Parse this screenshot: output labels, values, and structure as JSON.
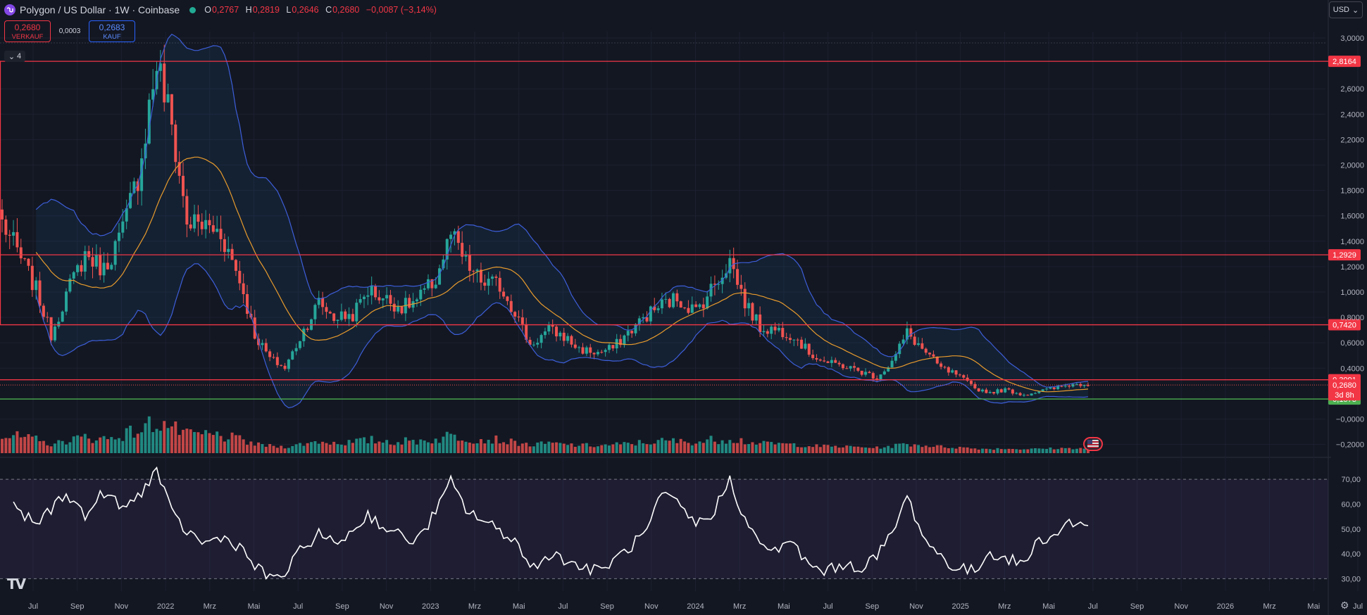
{
  "header": {
    "symbol": "Polygon / US Dollar · 1W · Coinbase",
    "open_label": "O",
    "open": "0,2767",
    "high_label": "H",
    "high": "0,2819",
    "low_label": "L",
    "low": "0,2646",
    "close_label": "C",
    "close": "0,2680",
    "change": "−0,0087 (−3,14%)"
  },
  "trade": {
    "sell_price": "0,2680",
    "sell_label": "VERKAUF",
    "spread": "0,0003",
    "buy_price": "0,2683",
    "buy_label": "KAUF"
  },
  "collapse_count": "4",
  "currency": "USD",
  "colors": {
    "background": "#131722",
    "up": "#26a69a",
    "down": "#ef5350",
    "bands": "#3d5ed9",
    "basis": "#e89b2d",
    "hline": "#f23645",
    "support": "#4caf50",
    "rsi": "#ffffff"
  },
  "chart_data": [
    {
      "type": "candlestick",
      "title": "Polygon / US Dollar · 1W · Coinbase",
      "timeframe": "1W",
      "ylim": [
        -0.28,
        3.05
      ],
      "y_ticks": [
        "3,0000",
        "2,6000",
        "2,4000",
        "2,2000",
        "2,0000",
        "1,8000",
        "1,6000",
        "1,4000",
        "1,2000",
        "1,0000",
        "0,8000",
        "0,6000",
        "0,4000",
        "−0,0000",
        "−0,2000"
      ],
      "x_ticks": [
        "Jul",
        "Sep",
        "Nov",
        "2022",
        "Mrz",
        "Mai",
        "Jul",
        "Sep",
        "Nov",
        "2023",
        "Mrz",
        "Mai",
        "Jul",
        "Sep",
        "Nov",
        "2024",
        "Mrz",
        "Mai",
        "Jul",
        "Sep",
        "Nov",
        "2025",
        "Mrz",
        "Mai",
        "Jul",
        "Sep",
        "Nov",
        "2026",
        "Mrz",
        "Mai",
        "Jul"
      ],
      "anchors": [
        [
          0,
          1.55
        ],
        [
          4,
          1.32
        ],
        [
          9,
          1.02
        ],
        [
          13,
          0.66
        ],
        [
          17,
          0.98
        ],
        [
          22,
          1.3
        ],
        [
          27,
          1.18
        ],
        [
          32,
          1.48
        ],
        [
          36,
          1.92
        ],
        [
          41,
          2.82
        ],
        [
          45,
          2.3
        ],
        [
          49,
          1.55
        ],
        [
          54,
          1.52
        ],
        [
          58,
          1.47
        ],
        [
          63,
          1.1
        ],
        [
          67,
          0.66
        ],
        [
          71,
          0.48
        ],
        [
          75,
          0.4
        ],
        [
          80,
          0.7
        ],
        [
          84,
          0.92
        ],
        [
          88,
          0.8
        ],
        [
          93,
          0.82
        ],
        [
          97,
          1.02
        ],
        [
          102,
          0.94
        ],
        [
          106,
          0.88
        ],
        [
          110,
          0.93
        ],
        [
          115,
          1.1
        ],
        [
          119,
          1.45
        ],
        [
          123,
          1.22
        ],
        [
          127,
          1.08
        ],
        [
          132,
          1.05
        ],
        [
          136,
          0.85
        ],
        [
          140,
          0.58
        ],
        [
          145,
          0.7
        ],
        [
          149,
          0.65
        ],
        [
          153,
          0.55
        ],
        [
          158,
          0.52
        ],
        [
          162,
          0.56
        ],
        [
          166,
          0.68
        ],
        [
          171,
          0.82
        ],
        [
          175,
          0.9
        ],
        [
          179,
          0.95
        ],
        [
          184,
          0.85
        ],
        [
          188,
          1.02
        ],
        [
          193,
          1.25
        ],
        [
          197,
          0.92
        ],
        [
          201,
          0.72
        ],
        [
          206,
          0.7
        ],
        [
          210,
          0.66
        ],
        [
          214,
          0.52
        ],
        [
          219,
          0.44
        ],
        [
          223,
          0.42
        ],
        [
          227,
          0.38
        ],
        [
          232,
          0.33
        ],
        [
          236,
          0.45
        ],
        [
          240,
          0.68
        ],
        [
          245,
          0.52
        ],
        [
          249,
          0.4
        ],
        [
          253,
          0.35
        ],
        [
          258,
          0.24
        ],
        [
          262,
          0.21
        ],
        [
          266,
          0.23
        ],
        [
          271,
          0.19
        ],
        [
          275,
          0.22
        ],
        [
          279,
          0.24
        ],
        [
          283,
          0.27
        ],
        [
          288,
          0.28
        ]
      ],
      "last_price": "0,2680",
      "countdown": "3d 8h",
      "horizontal_levels": [
        {
          "value": 2.8164,
          "label": "2,8164",
          "color": "#f23645"
        },
        {
          "value": 1.2929,
          "label": "1,2929",
          "color": "#f23645"
        },
        {
          "value": 0.742,
          "label": "0,7420",
          "color": "#f23645"
        },
        {
          "value": 0.3091,
          "label": "0,3091",
          "color": "#f23645"
        },
        {
          "value": 0.1573,
          "label": "0,1573",
          "color": "#4caf50"
        }
      ],
      "indicators": [
        "Bollinger Bands",
        "Moving Average",
        "Volume"
      ]
    },
    {
      "type": "line",
      "indicator": "RSI",
      "ylim": [
        25,
        76
      ],
      "y_ticks": [
        "70,00",
        "60,00",
        "50,00",
        "40,00",
        "30,00"
      ],
      "levels": [
        70,
        30
      ],
      "anchors": [
        [
          0,
          64
        ],
        [
          4,
          57
        ],
        [
          9,
          52
        ],
        [
          13,
          58
        ],
        [
          17,
          65
        ],
        [
          22,
          55
        ],
        [
          27,
          65
        ],
        [
          32,
          58
        ],
        [
          36,
          63
        ],
        [
          41,
          74
        ],
        [
          45,
          56
        ],
        [
          49,
          49
        ],
        [
          54,
          44
        ],
        [
          58,
          47
        ],
        [
          63,
          43
        ],
        [
          67,
          35
        ],
        [
          71,
          30
        ],
        [
          75,
          32
        ],
        [
          80,
          43
        ],
        [
          84,
          48
        ],
        [
          88,
          44
        ],
        [
          93,
          49
        ],
        [
          97,
          56
        ],
        [
          102,
          50
        ],
        [
          106,
          47
        ],
        [
          110,
          45
        ],
        [
          115,
          57
        ],
        [
          119,
          69
        ],
        [
          123,
          58
        ],
        [
          127,
          54
        ],
        [
          132,
          49
        ],
        [
          136,
          46
        ],
        [
          140,
          34
        ],
        [
          145,
          40
        ],
        [
          149,
          38
        ],
        [
          153,
          35
        ],
        [
          158,
          33
        ],
        [
          162,
          37
        ],
        [
          166,
          42
        ],
        [
          171,
          49
        ],
        [
          175,
          64
        ],
        [
          179,
          60
        ],
        [
          184,
          52
        ],
        [
          188,
          55
        ],
        [
          193,
          70
        ],
        [
          197,
          54
        ],
        [
          201,
          43
        ],
        [
          206,
          42
        ],
        [
          210,
          44
        ],
        [
          214,
          35
        ],
        [
          219,
          33
        ],
        [
          223,
          36
        ],
        [
          227,
          34
        ],
        [
          232,
          39
        ],
        [
          236,
          48
        ],
        [
          240,
          63
        ],
        [
          245,
          45
        ],
        [
          249,
          39
        ],
        [
          253,
          34
        ],
        [
          258,
          33
        ],
        [
          262,
          41
        ],
        [
          266,
          38
        ],
        [
          271,
          36
        ],
        [
          275,
          46
        ],
        [
          279,
          47
        ],
        [
          283,
          53
        ],
        [
          288,
          51
        ]
      ]
    }
  ]
}
